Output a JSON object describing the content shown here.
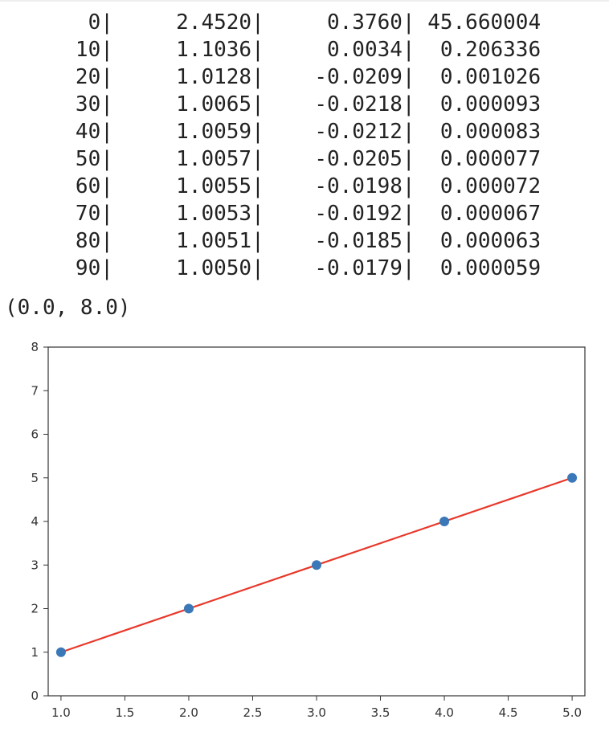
{
  "console": {
    "rows": [
      {
        "epoch": "0",
        "col1": "2.4520",
        "col2": "0.3760",
        "col3": "45.660004"
      },
      {
        "epoch": "10",
        "col1": "1.1036",
        "col2": "0.0034",
        "col3": "0.206336"
      },
      {
        "epoch": "20",
        "col1": "1.0128",
        "col2": "-0.0209",
        "col3": "0.001026"
      },
      {
        "epoch": "30",
        "col1": "1.0065",
        "col2": "-0.0218",
        "col3": "0.000093"
      },
      {
        "epoch": "40",
        "col1": "1.0059",
        "col2": "-0.0212",
        "col3": "0.000083"
      },
      {
        "epoch": "50",
        "col1": "1.0057",
        "col2": "-0.0205",
        "col3": "0.000077"
      },
      {
        "epoch": "60",
        "col1": "1.0055",
        "col2": "-0.0198",
        "col3": "0.000072"
      },
      {
        "epoch": "70",
        "col1": "1.0053",
        "col2": "-0.0192",
        "col3": "0.000067"
      },
      {
        "epoch": "80",
        "col1": "1.0051",
        "col2": "-0.0185",
        "col3": "0.000063"
      },
      {
        "epoch": "90",
        "col1": "1.0050",
        "col2": "-0.0179",
        "col3": "0.000059"
      }
    ],
    "tuple_output": "(0.0, 8.0)"
  },
  "chart_data": {
    "type": "scatter",
    "title": "",
    "xlabel": "",
    "ylabel": "",
    "xlim": [
      0.9,
      5.1
    ],
    "ylim": [
      0,
      8
    ],
    "xticks": [
      "1.0",
      "1.5",
      "2.0",
      "2.5",
      "3.0",
      "3.5",
      "4.0",
      "4.5",
      "5.0"
    ],
    "yticks": [
      "0",
      "1",
      "2",
      "3",
      "4",
      "5",
      "6",
      "7",
      "8"
    ],
    "grid": false,
    "series": [
      {
        "kind": "scatter",
        "color": "#3a78b7",
        "x": [
          1.0,
          2.0,
          3.0,
          4.0,
          5.0
        ],
        "y": [
          1.0,
          2.0,
          3.0,
          4.0,
          5.0
        ]
      },
      {
        "kind": "line",
        "color": "#e8382a",
        "x": [
          1.0,
          5.0
        ],
        "y": [
          1.0,
          5.0
        ]
      }
    ]
  }
}
